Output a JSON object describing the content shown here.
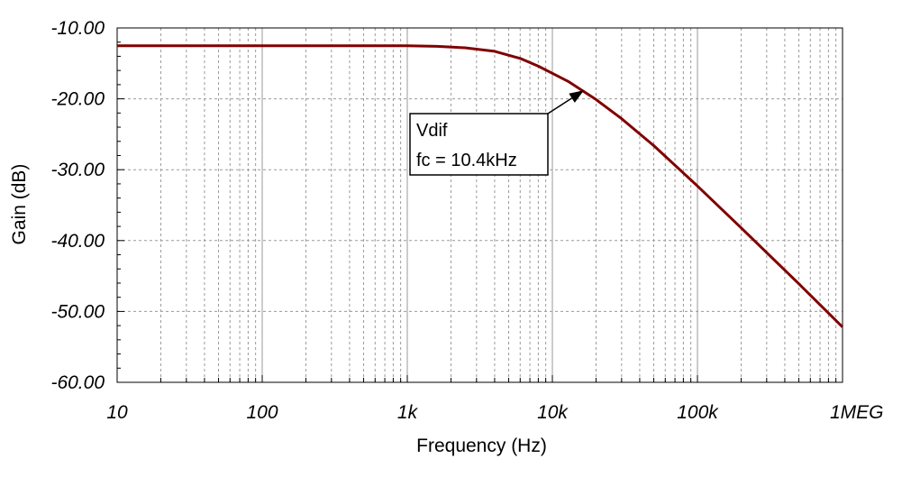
{
  "chart_data": {
    "type": "line",
    "title": "",
    "xlabel": "Frequency (Hz)",
    "ylabel": "Gain (dB)",
    "x_scale": "log",
    "xlim": [
      10,
      1000000
    ],
    "ylim": [
      -60,
      -10
    ],
    "grid": true,
    "x_tick_labels": [
      "10",
      "100",
      "1k",
      "10k",
      "100k",
      "1MEG"
    ],
    "x_tick_values": [
      10,
      100,
      1000,
      10000,
      100000,
      1000000
    ],
    "y_tick_labels": [
      "-10.00",
      "-20.00",
      "-30.00",
      "-40.00",
      "-50.00",
      "-60.00"
    ],
    "y_tick_values": [
      -10,
      -20,
      -30,
      -40,
      -50,
      -60
    ],
    "series": [
      {
        "color": "#800000",
        "x": [
          10,
          100,
          1000,
          1600,
          2500,
          4000,
          6000,
          8000,
          10000,
          13000,
          16000,
          20000,
          30000,
          50000,
          100000,
          200000,
          500000,
          1000000
        ],
        "y": [
          -12.5,
          -12.5,
          -12.5,
          -12.6,
          -12.8,
          -13.3,
          -14.3,
          -15.4,
          -16.4,
          -17.6,
          -18.8,
          -20.1,
          -22.8,
          -26.6,
          -32.3,
          -38.2,
          -46.1,
          -52.2
        ]
      }
    ],
    "annotation": {
      "series_label": "Vdif",
      "text": "fc = 10.4kHz",
      "arrow_target": {
        "x": 16500,
        "y": -18.8
      }
    }
  }
}
